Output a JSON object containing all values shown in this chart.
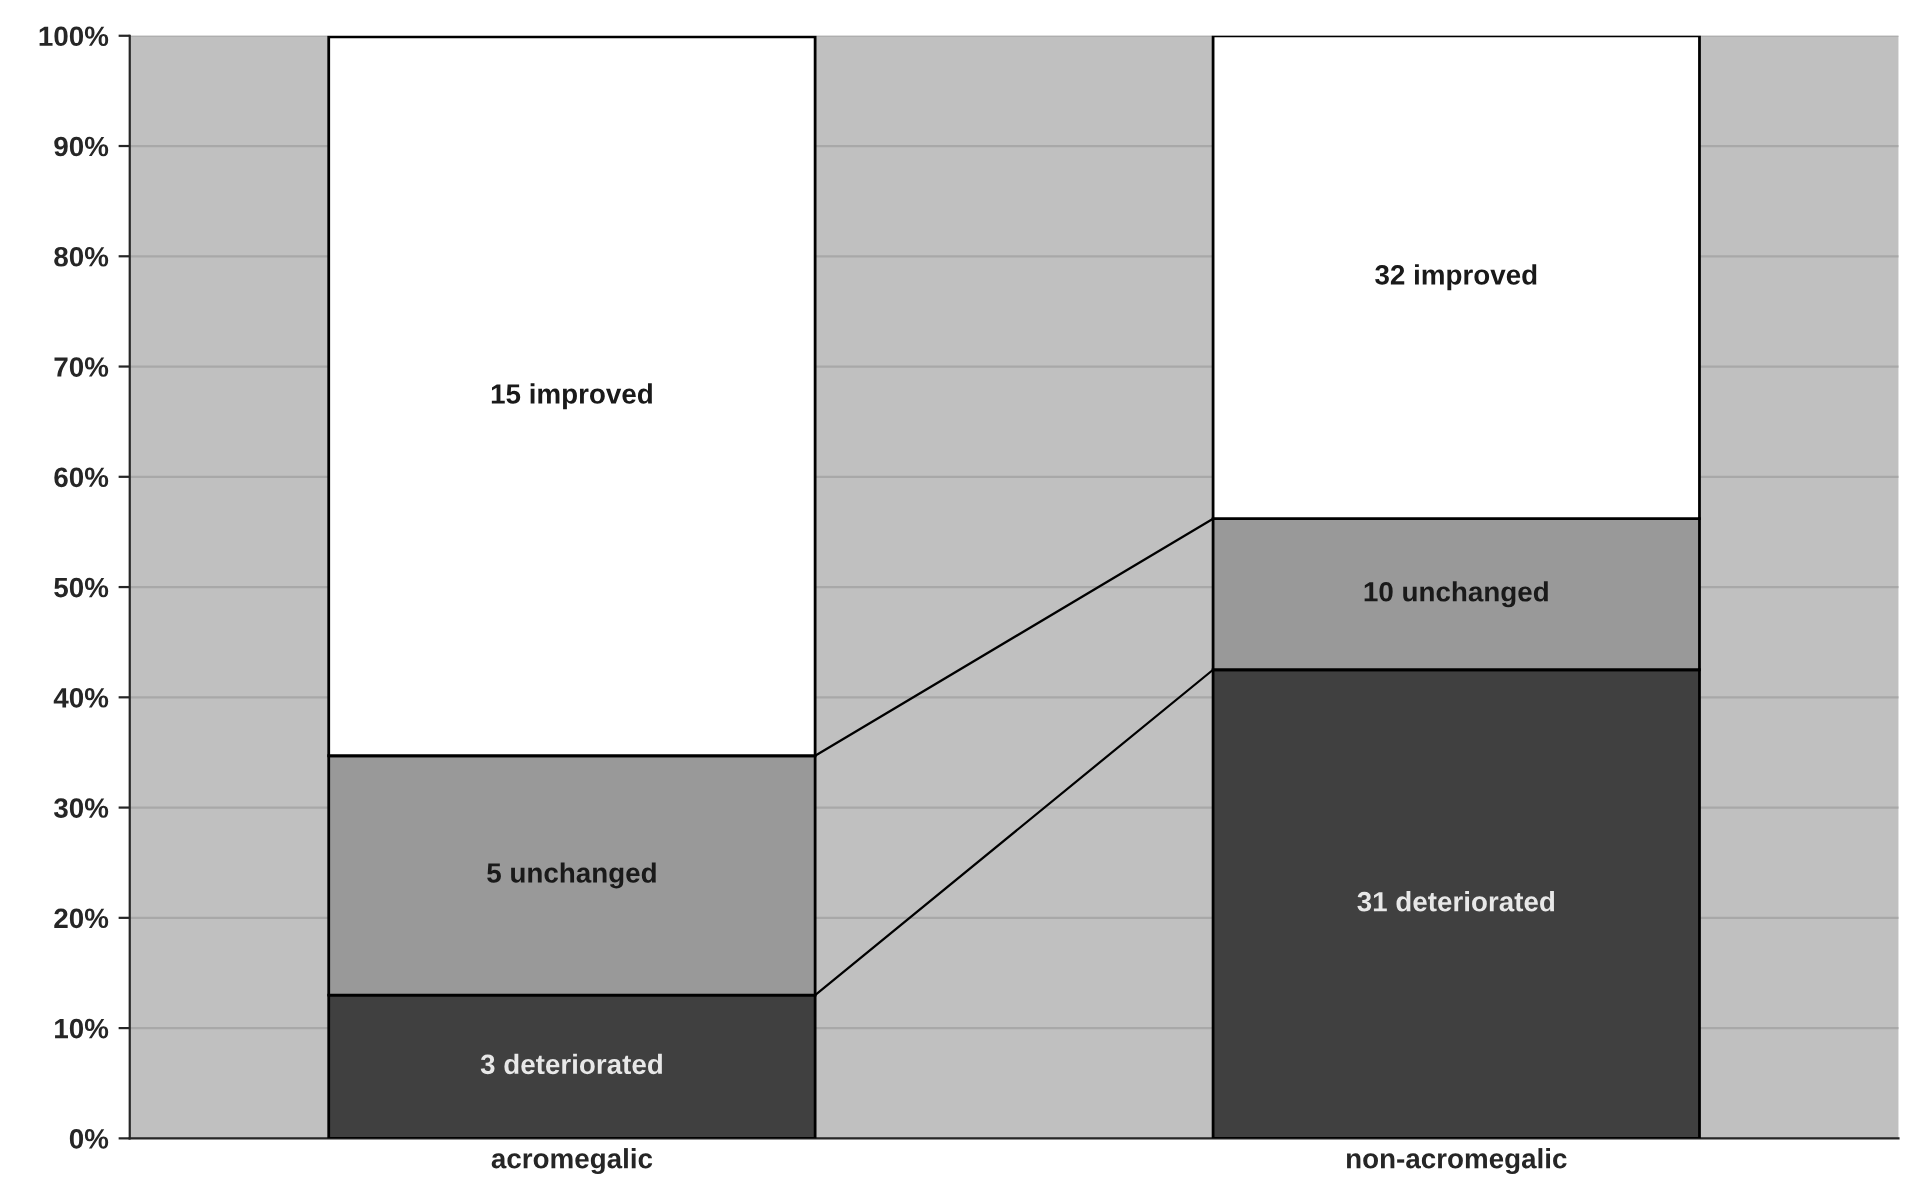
{
  "chart_data": {
    "type": "bar",
    "stacked": true,
    "categories": [
      "acromegalic",
      "non-acromegalic"
    ],
    "series": [
      {
        "color": "#404040",
        "values": [
          13.0,
          42.5
        ]
      },
      {
        "color": "#999999",
        "values": [
          21.7,
          13.7
        ]
      },
      {
        "color": "#ffffff",
        "values": [
          65.2,
          43.8
        ]
      }
    ],
    "annotations": [
      "3 deteriorated",
      "31 deteriorated",
      "5 unchanged",
      "10 unchanged",
      "15 improved",
      "32 improved"
    ],
    "ylim": [
      0,
      100
    ],
    "yticks": [
      {
        "value": 0,
        "label": "0%"
      },
      {
        "value": 10,
        "label": "10%"
      },
      {
        "value": 20,
        "label": "20%"
      },
      {
        "value": 30,
        "label": "30%"
      },
      {
        "value": 40,
        "label": "40%"
      },
      {
        "value": 50,
        "label": "50%"
      },
      {
        "value": 60,
        "label": "60%"
      },
      {
        "value": 70,
        "label": "70%"
      },
      {
        "value": 80,
        "label": "80%"
      },
      {
        "value": 90,
        "label": "90%"
      },
      {
        "value": 100,
        "label": "100%"
      }
    ],
    "grid": "y",
    "legend": false
  }
}
